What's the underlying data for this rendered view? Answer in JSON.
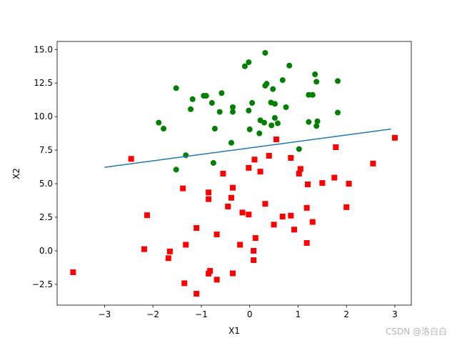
{
  "chart_data": {
    "type": "scatter",
    "xlabel": "X1",
    "ylabel": "X2",
    "xlim": [
      -3.98,
      3.34
    ],
    "ylim": [
      -4.05,
      15.6
    ],
    "x_ticks": [
      -3,
      -2,
      -1,
      0,
      1,
      2,
      3
    ],
    "x_tick_labels": [
      "−3",
      "−2",
      "−1",
      "0",
      "1",
      "2",
      "3"
    ],
    "y_ticks": [
      -2.5,
      0.0,
      2.5,
      5.0,
      7.5,
      10.0,
      12.5,
      15.0
    ],
    "y_tick_labels": [
      "−2.5",
      "0.0",
      "2.5",
      "5.0",
      "7.5",
      "10.0",
      "12.5",
      "15.0"
    ],
    "grid": false,
    "series": [
      {
        "marker": "circle",
        "color": "#008000",
        "points": [
          [
            0.32,
            14.75
          ],
          [
            -0.02,
            14.05
          ],
          [
            -0.1,
            13.75
          ],
          [
            0.82,
            13.8
          ],
          [
            1.35,
            13.15
          ],
          [
            1.38,
            12.6
          ],
          [
            1.82,
            12.65
          ],
          [
            0.32,
            12.3
          ],
          [
            0.35,
            12.45
          ],
          [
            0.68,
            12.72
          ],
          [
            -1.52,
            12.12
          ],
          [
            -0.58,
            11.75
          ],
          [
            0.48,
            12.05
          ],
          [
            -0.95,
            11.55
          ],
          [
            -0.9,
            11.55
          ],
          [
            -1.18,
            11.3
          ],
          [
            1.22,
            11.62
          ],
          [
            1.3,
            11.62
          ],
          [
            -0.78,
            11.02
          ],
          [
            0.05,
            11.02
          ],
          [
            0.44,
            11.05
          ],
          [
            0.52,
            10.95
          ],
          [
            -0.35,
            10.7
          ],
          [
            -1.22,
            10.55
          ],
          [
            -0.62,
            10.35
          ],
          [
            -0.35,
            10.35
          ],
          [
            -0.02,
            10.45
          ],
          [
            0.75,
            10.7
          ],
          [
            1.82,
            10.3
          ],
          [
            0.52,
            9.9
          ],
          [
            0.22,
            9.72
          ],
          [
            0.3,
            9.55
          ],
          [
            0.58,
            9.5
          ],
          [
            -1.88,
            9.55
          ],
          [
            -1.78,
            9.1
          ],
          [
            -0.72,
            9.1
          ],
          [
            0.0,
            9.05
          ],
          [
            0.45,
            9.35
          ],
          [
            1.22,
            9.6
          ],
          [
            1.4,
            9.65
          ],
          [
            1.38,
            9.3
          ],
          [
            0.2,
            8.75
          ],
          [
            -0.38,
            8.05
          ],
          [
            1.02,
            7.58
          ],
          [
            -1.32,
            7.12
          ],
          [
            -0.75,
            6.55
          ],
          [
            -1.52,
            6.05
          ]
        ]
      },
      {
        "marker": "square",
        "color": "#ff0000",
        "points": [
          [
            3.0,
            8.42
          ],
          [
            0.55,
            8.3
          ],
          [
            1.78,
            7.72
          ],
          [
            0.4,
            7.08
          ],
          [
            -2.45,
            6.85
          ],
          [
            0.1,
            6.8
          ],
          [
            0.85,
            6.92
          ],
          [
            2.55,
            6.5
          ],
          [
            -0.02,
            6.18
          ],
          [
            0.22,
            5.9
          ],
          [
            1.05,
            6.1
          ],
          [
            1.02,
            5.75
          ],
          [
            -0.55,
            5.75
          ],
          [
            1.75,
            5.45
          ],
          [
            1.5,
            5.05
          ],
          [
            2.05,
            5.0
          ],
          [
            1.2,
            4.95
          ],
          [
            -1.38,
            4.65
          ],
          [
            -0.35,
            4.7
          ],
          [
            -0.85,
            4.35
          ],
          [
            -0.85,
            3.85
          ],
          [
            -0.38,
            3.95
          ],
          [
            -0.45,
            3.3
          ],
          [
            0.32,
            3.5
          ],
          [
            1.18,
            3.2
          ],
          [
            2.0,
            3.25
          ],
          [
            -0.15,
            2.85
          ],
          [
            -2.12,
            2.65
          ],
          [
            -0.02,
            2.7
          ],
          [
            0.68,
            2.55
          ],
          [
            0.85,
            2.62
          ],
          [
            0.5,
            1.95
          ],
          [
            1.3,
            2.15
          ],
          [
            -1.1,
            1.7
          ],
          [
            0.92,
            1.58
          ],
          [
            -0.68,
            1.22
          ],
          [
            0.12,
            0.95
          ],
          [
            1.18,
            0.58
          ],
          [
            -0.2,
            0.45
          ],
          [
            -1.32,
            0.45
          ],
          [
            -2.18,
            0.12
          ],
          [
            0.08,
            0.0
          ],
          [
            -1.65,
            -0.05
          ],
          [
            -1.68,
            -0.55
          ],
          [
            0.08,
            -0.7
          ],
          [
            -3.65,
            -1.6
          ],
          [
            -0.35,
            -1.68
          ],
          [
            -0.82,
            -1.5
          ],
          [
            -0.85,
            -1.7
          ],
          [
            -0.68,
            -2.15
          ],
          [
            -1.35,
            -2.42
          ],
          [
            -1.1,
            -3.2
          ]
        ]
      },
      {
        "type": "line",
        "color": "#1f77b4",
        "x": [
          -3.0,
          2.92
        ],
        "y": [
          6.22,
          9.07
        ]
      }
    ]
  },
  "watermark": "CSDN @洛白白"
}
